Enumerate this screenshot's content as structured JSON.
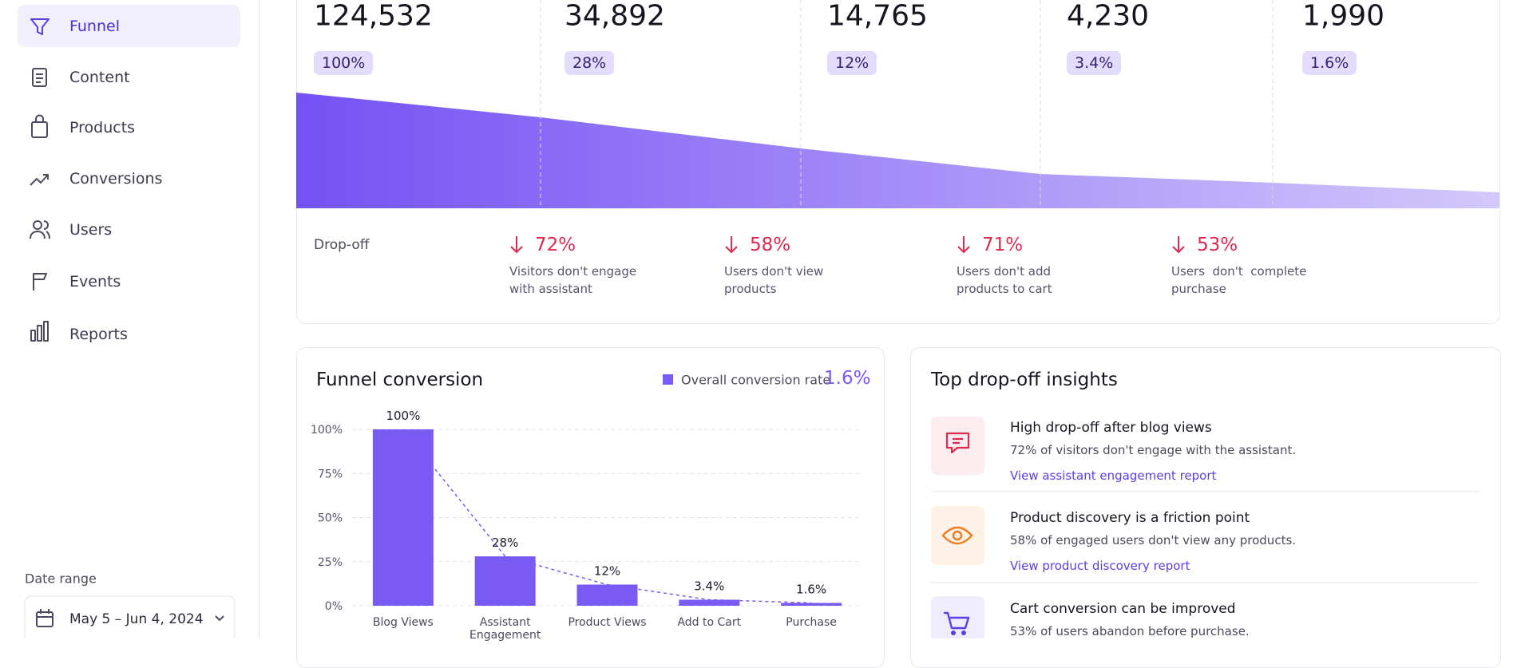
{
  "sidebar": {
    "nav": [
      "Funnel",
      "Content",
      "Products",
      "Conversions",
      "Users",
      "Events",
      "Reports"
    ],
    "date_range_label": "Date range",
    "date_range": "May 5 – Jun 4, 2024"
  },
  "funnel": {
    "stages": [
      {
        "count": "124,532",
        "share": "100%"
      },
      {
        "count": "34,892",
        "share": "28%"
      },
      {
        "count": "14,765",
        "share": "12%"
      },
      {
        "count": "4,230",
        "share": "3.4%"
      },
      {
        "count": "1,990",
        "share": "1.6%"
      }
    ],
    "dropoff_label": "Drop-off",
    "dropoffs": [
      {
        "rate": "72%",
        "lines": [
          "Visitors don't engage",
          "with assistant"
        ]
      },
      {
        "rate": "58%",
        "lines": [
          "Users don't view",
          "products"
        ]
      },
      {
        "rate": "71%",
        "lines": [
          "Users don't add",
          "products to cart"
        ]
      },
      {
        "rate": "53%",
        "lines": [
          "Users  don't  complete",
          "purchase"
        ]
      }
    ]
  },
  "chart_data": {
    "type": "bar",
    "title": "Funnel conversion",
    "categories": [
      "Blog Views",
      "Assistant Engagement",
      "Product Views",
      "Add to Cart",
      "Purchase"
    ],
    "series": [
      {
        "name": "Overall conversion rate",
        "color": "#7a5af5",
        "values": [
          100,
          28,
          12,
          3.4,
          1.6
        ],
        "value_labels": [
          "100%",
          "28%",
          "12%",
          "3.4%",
          "1.6%"
        ]
      }
    ],
    "overall_value": "1.6%",
    "ylim": [
      0,
      100
    ],
    "yticks": [
      {
        "value": 0,
        "label": "0%"
      },
      {
        "value": 25,
        "label": "25%"
      },
      {
        "value": 50,
        "label": "50%"
      },
      {
        "value": 75,
        "label": "75%"
      },
      {
        "value": 100,
        "label": "100%"
      }
    ],
    "grid": true
  },
  "insights": {
    "title": "Top drop-off insights",
    "items": [
      {
        "title": "High drop-off after blog views",
        "text": "72% of visitors don't engage with the assistant.",
        "link": "View assistant engagement report"
      },
      {
        "title": "Product discovery is a friction point",
        "text": "58% of engaged users don't view any products.",
        "link": "View product discovery report"
      },
      {
        "title": "Cart conversion can be improved",
        "text": "53% of users abandon before purchase."
      }
    ]
  }
}
